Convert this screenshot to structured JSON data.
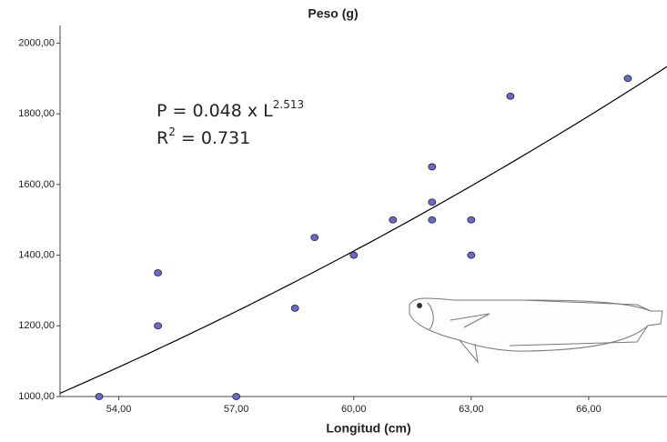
{
  "chart_data": {
    "type": "scatter",
    "title": "Peso (g)",
    "x_label": "Longitud (cm)",
    "x": [
      53.5,
      55,
      55,
      57,
      58.5,
      59,
      60,
      61,
      62,
      62,
      62,
      63,
      63,
      64,
      67
    ],
    "values": [
      1000,
      1350,
      1200,
      1000,
      1250,
      1450,
      1400,
      1500,
      1650,
      1550,
      1500,
      1500,
      1400,
      1850,
      1900
    ],
    "color": "#6666dd",
    "xlim": [
      52.5,
      68.0
    ],
    "ylim": [
      1000,
      2050
    ],
    "xticks": [
      {
        "value": 54,
        "label": "54,00"
      },
      {
        "value": 57,
        "label": "57,00"
      },
      {
        "value": 60,
        "label": "60,00"
      },
      {
        "value": 63,
        "label": "63,00"
      },
      {
        "value": 66,
        "label": "66,00"
      }
    ],
    "yticks": [
      {
        "value": 1000,
        "label": "1000,00"
      },
      {
        "value": 1200,
        "label": "1200,00"
      },
      {
        "value": 1400,
        "label": "1400,00"
      },
      {
        "value": 1600,
        "label": "1600,00"
      },
      {
        "value": 1800,
        "label": "1800,00"
      },
      {
        "value": 2000,
        "label": "2000,00"
      }
    ],
    "fit": {
      "a": 0.048,
      "b": 2.513
    },
    "equation": {
      "text": "P = 0.048 x L",
      "exponent": "2.513"
    },
    "r_squared": {
      "text": "R",
      "exponent": "2",
      "rest": " = 0.731"
    }
  }
}
